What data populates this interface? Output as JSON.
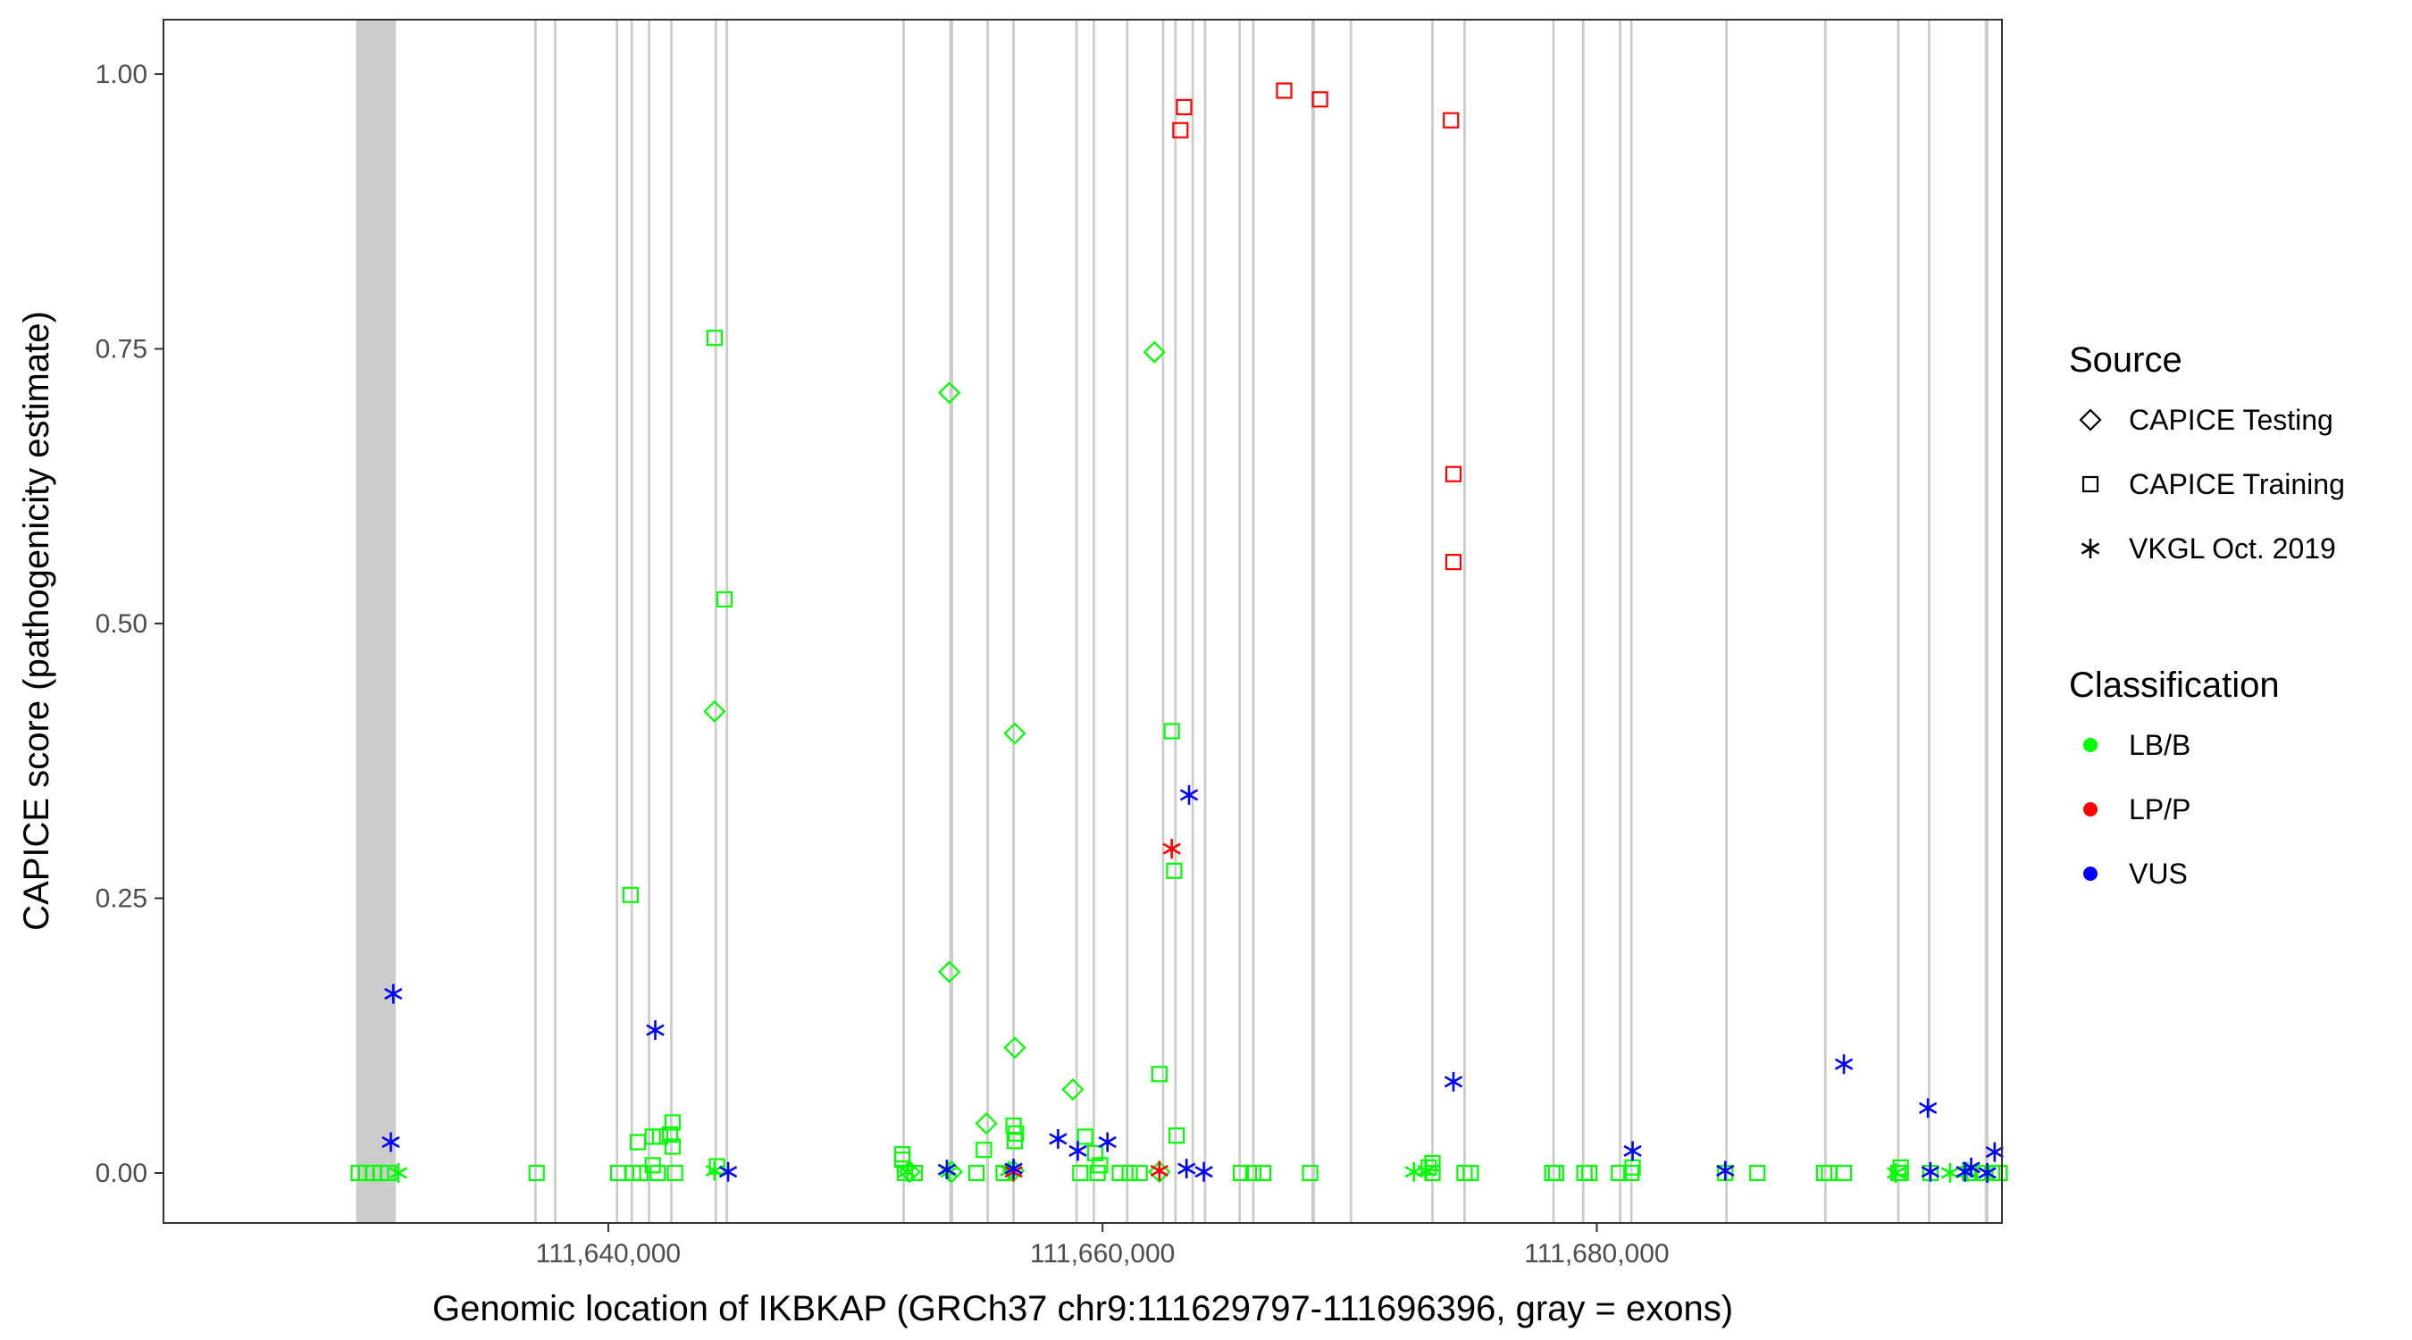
{
  "chart_data": {
    "type": "scatter",
    "xlabel": "Genomic location of IKBKAP (GRCh37 chr9:111629797-111696396, gray = exons)",
    "ylabel": "CAPICE score (pathogenicity estimate)",
    "xlim": [
      111622000,
      111696396
    ],
    "ylim": [
      0,
      1
    ],
    "x_ticks": [
      111640000,
      111660000,
      111680000
    ],
    "x_tick_labels": [
      "111,640,000",
      "111,660,000",
      "111,680,000"
    ],
    "y_ticks": [
      0,
      0.25,
      0.5,
      0.75,
      1
    ],
    "y_tick_labels": [
      "0.00",
      "0.25",
      "0.50",
      "0.75",
      "1.00"
    ],
    "grid": false,
    "legend_position": "right",
    "legend": {
      "source_title": "Source",
      "source_items": [
        {
          "shape": "diamond",
          "label": "CAPICE Testing"
        },
        {
          "shape": "square",
          "label": "CAPICE Training"
        },
        {
          "shape": "asterisk",
          "label": "VKGL Oct. 2019"
        }
      ],
      "class_title": "Classification",
      "class_items": [
        {
          "key": "LB/B",
          "label": "LB/B",
          "color": "#00ff00"
        },
        {
          "key": "LP/P",
          "label": "LP/P",
          "color": "#ff0000"
        },
        {
          "key": "VUS",
          "label": "VUS",
          "color": "#0000ff"
        }
      ]
    },
    "exons": [
      [
        111629797,
        111631400
      ],
      [
        111637000,
        111637100
      ],
      [
        111637800,
        111637900
      ],
      [
        111640300,
        111640400
      ],
      [
        111640900,
        111641000
      ],
      [
        111641600,
        111641700
      ],
      [
        111642500,
        111642600
      ],
      [
        111644300,
        111644400
      ],
      [
        111644750,
        111644850
      ],
      [
        111651900,
        111652000
      ],
      [
        111653800,
        111653950
      ],
      [
        111655300,
        111655400
      ],
      [
        111656350,
        111656450
      ],
      [
        111658900,
        111659000
      ],
      [
        111659600,
        111659700
      ],
      [
        111660950,
        111661050
      ],
      [
        111662400,
        111662500
      ],
      [
        111662900,
        111663000
      ],
      [
        111663600,
        111663700
      ],
      [
        111664100,
        111664200
      ],
      [
        111665500,
        111665600
      ],
      [
        111666050,
        111666150
      ],
      [
        111668450,
        111668600
      ],
      [
        111670000,
        111670100
      ],
      [
        111673300,
        111673400
      ],
      [
        111674600,
        111674700
      ],
      [
        111678200,
        111678300
      ],
      [
        111679400,
        111679500
      ],
      [
        111680900,
        111681000
      ],
      [
        111681350,
        111681450
      ],
      [
        111685200,
        111685300
      ],
      [
        111689200,
        111689300
      ],
      [
        111692150,
        111692250
      ],
      [
        111693400,
        111693500
      ],
      [
        111695700,
        111695850
      ]
    ],
    "series": [
      {
        "source": "CAPICE Testing",
        "class": "LB/B",
        "points": [
          [
            111644300,
            0.42
          ],
          [
            111653800,
            0.71
          ],
          [
            111653800,
            0.183
          ],
          [
            111656450,
            0.4
          ],
          [
            111656450,
            0.114
          ],
          [
            111662100,
            0.747
          ],
          [
            111658800,
            0.076
          ],
          [
            111655300,
            0.045
          ],
          [
            111656400,
            0.002
          ],
          [
            111653900,
            0.001
          ],
          [
            111662300,
            0.001
          ],
          [
            111652200,
            0.001
          ]
        ]
      },
      {
        "source": "CAPICE Training",
        "class": "LB/B",
        "points": [
          [
            111644300,
            0.76
          ],
          [
            111644700,
            0.522
          ],
          [
            111640900,
            0.253
          ],
          [
            111662800,
            0.402
          ],
          [
            111662900,
            0.275
          ],
          [
            111662300,
            0.09
          ],
          [
            111663000,
            0.034
          ],
          [
            111644400,
            0.006
          ],
          [
            111641200,
            0.028
          ],
          [
            111641800,
            0.033
          ],
          [
            111642100,
            0.033
          ],
          [
            111642600,
            0.046
          ],
          [
            111642500,
            0.035
          ],
          [
            111642600,
            0.024
          ],
          [
            111641800,
            0.007
          ],
          [
            111651900,
            0.017
          ],
          [
            111651900,
            0.012
          ],
          [
            111656400,
            0.043
          ],
          [
            111656500,
            0.036
          ],
          [
            111656450,
            0.029
          ],
          [
            111655200,
            0.021
          ],
          [
            111659300,
            0.033
          ],
          [
            111659700,
            0.018
          ],
          [
            111659900,
            0.007
          ],
          [
            111673350,
            0.009
          ],
          [
            111673200,
            0.005
          ],
          [
            111681450,
            0.005
          ],
          [
            111692300,
            0.005
          ],
          [
            111629900,
            0.0
          ],
          [
            111630200,
            0.0
          ],
          [
            111630500,
            0.0
          ],
          [
            111630800,
            0.0
          ],
          [
            111631100,
            0.0
          ],
          [
            111637100,
            0.0
          ],
          [
            111640400,
            0.0
          ],
          [
            111641000,
            0.0
          ],
          [
            111641300,
            0.0
          ],
          [
            111642000,
            0.0
          ],
          [
            111642700,
            0.0
          ],
          [
            111652000,
            0.0
          ],
          [
            111652400,
            0.0
          ],
          [
            111654900,
            0.0
          ],
          [
            111656000,
            0.0
          ],
          [
            111659100,
            0.0
          ],
          [
            111659800,
            0.0
          ],
          [
            111660700,
            0.0
          ],
          [
            111661100,
            0.0
          ],
          [
            111661500,
            0.0
          ],
          [
            111665600,
            0.0
          ],
          [
            111666100,
            0.0
          ],
          [
            111666500,
            0.0
          ],
          [
            111668400,
            0.0
          ],
          [
            111673350,
            0.0
          ],
          [
            111674650,
            0.0
          ],
          [
            111674900,
            0.0
          ],
          [
            111678200,
            0.0
          ],
          [
            111678350,
            0.0
          ],
          [
            111679500,
            0.0
          ],
          [
            111679700,
            0.0
          ],
          [
            111680900,
            0.0
          ],
          [
            111681400,
            0.0
          ],
          [
            111685200,
            0.0
          ],
          [
            111686500,
            0.0
          ],
          [
            111689200,
            0.0
          ],
          [
            111689400,
            0.0
          ],
          [
            111690000,
            0.0
          ],
          [
            111692200,
            0.0
          ],
          [
            111692300,
            0.0
          ],
          [
            111693500,
            0.0
          ],
          [
            111695100,
            0.0
          ],
          [
            111695600,
            0.0
          ],
          [
            111696000,
            0.0
          ],
          [
            111696300,
            0.0
          ]
        ]
      },
      {
        "source": "CAPICE Training",
        "class": "LP/P",
        "points": [
          [
            111667350,
            0.985
          ],
          [
            111663300,
            0.97
          ],
          [
            111663150,
            0.949
          ],
          [
            111668800,
            0.977
          ],
          [
            111674100,
            0.958
          ],
          [
            111674200,
            0.636
          ],
          [
            111674200,
            0.556
          ]
        ]
      },
      {
        "source": "VKGL Oct. 2019",
        "class": "LB/B",
        "points": [
          [
            111631500,
            0.0
          ],
          [
            111644300,
            0.002
          ],
          [
            111652100,
            0.001
          ],
          [
            111653800,
            0.001
          ],
          [
            111656200,
            0.002
          ],
          [
            111672600,
            0.001
          ],
          [
            111673100,
            0.002
          ],
          [
            111692100,
            0.0
          ],
          [
            111694300,
            0.0
          ],
          [
            111695000,
            0.001
          ],
          [
            111695800,
            0.0
          ]
        ]
      },
      {
        "source": "VKGL Oct. 2019",
        "class": "LP/P",
        "points": [
          [
            111662800,
            0.295
          ],
          [
            111656400,
            0.001
          ],
          [
            111662300,
            0.002
          ]
        ]
      },
      {
        "source": "VKGL Oct. 2019",
        "class": "VUS",
        "points": [
          [
            111631300,
            0.163
          ],
          [
            111631200,
            0.028
          ],
          [
            111641900,
            0.13
          ],
          [
            111663500,
            0.344
          ],
          [
            111674200,
            0.083
          ],
          [
            111690000,
            0.099
          ],
          [
            111693400,
            0.059
          ],
          [
            111681450,
            0.02
          ],
          [
            111658200,
            0.031
          ],
          [
            111660200,
            0.028
          ],
          [
            111659000,
            0.02
          ],
          [
            111656400,
            0.004
          ],
          [
            111653700,
            0.003
          ],
          [
            111644850,
            0.001
          ],
          [
            111663400,
            0.004
          ],
          [
            111664100,
            0.001
          ],
          [
            111685200,
            0.002
          ],
          [
            111693500,
            0.001
          ],
          [
            111695150,
            0.005
          ],
          [
            111694900,
            0.001
          ],
          [
            111695800,
            0.0
          ],
          [
            111696100,
            0.019
          ]
        ]
      }
    ]
  }
}
